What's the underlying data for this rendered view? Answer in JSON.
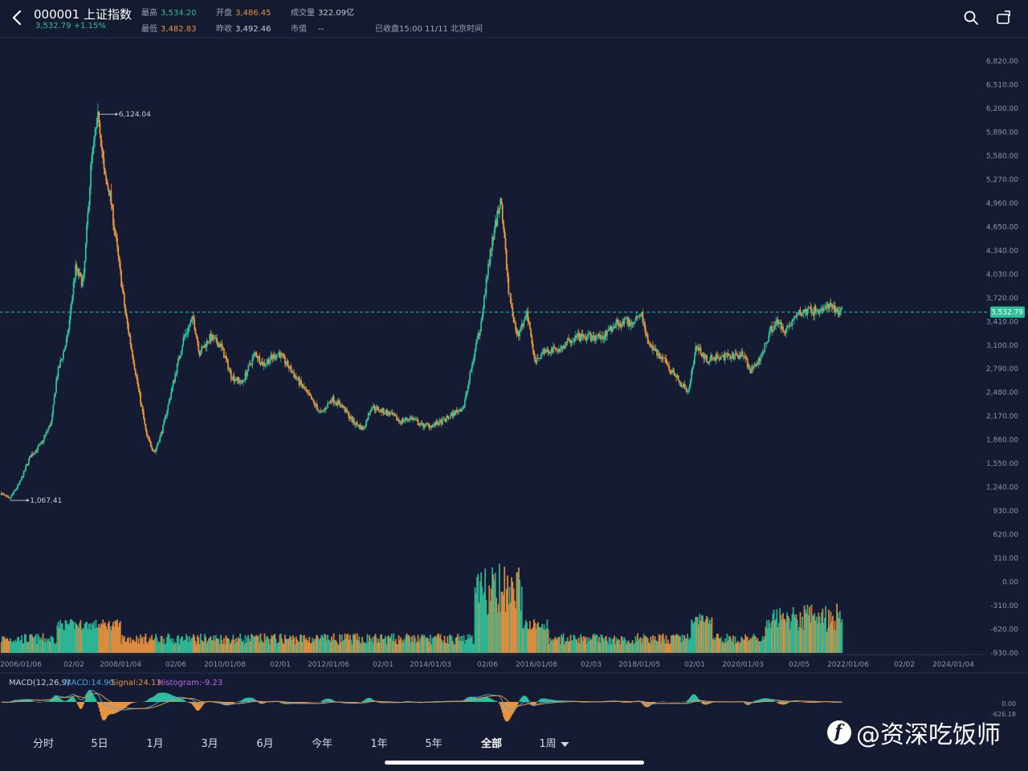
{
  "header": {
    "code_name": "000001 上证指数",
    "price_change": "3,532.79 +1.15%",
    "high_label": "最高",
    "high_value": "3,534.20",
    "low_label": "最低",
    "low_value": "3,482.83",
    "open_label": "开盘",
    "open_value": "3,486.45",
    "prev_close_label": "昨收",
    "prev_close_value": "3,492.46",
    "volume_label": "成交量",
    "volume_value": "322.09亿",
    "market_cap_label": "市值",
    "market_cap_value": "--",
    "status": "已收盘15:00 11/11 北京时间",
    "icons": [
      "back-chevron-icon",
      "search-icon",
      "landscape-rotate-icon"
    ]
  },
  "tabs": [
    {
      "label": "分时"
    },
    {
      "label": "5日"
    },
    {
      "label": "1月"
    },
    {
      "label": "3月"
    },
    {
      "label": "6月"
    },
    {
      "label": "今年"
    },
    {
      "label": "1年"
    },
    {
      "label": "5年"
    },
    {
      "label": "全部",
      "active": true
    },
    {
      "label": "1周",
      "dropdown": true
    }
  ],
  "macd": {
    "params": "MACD(12,26,9)",
    "macd": "MACD:14.90",
    "signal": "Signal:24.13",
    "histogram": "Histogram:-9.23",
    "axis": [
      "0.00",
      "-626.18"
    ]
  },
  "watermark": "@资深吃饭师",
  "colors": {
    "background": "#151b32",
    "up": "#2fbf9a",
    "down": "#e8943f",
    "price_line": "#2fbf9a",
    "macd_line": "#4aa3e8",
    "signal_line": "#e8943f",
    "histogram_label": "#b46ae6"
  },
  "chart_data": {
    "type": "candlestick",
    "price_axis": [
      "6,820.00",
      "6,510.00",
      "6,200.00",
      "5,890.00",
      "5,580.00",
      "5,270.00",
      "4,960.00",
      "4,650.00",
      "4,340.00",
      "4,030.00",
      "3,720.00",
      "3,410.00",
      "3,100.00",
      "2,790.00",
      "2,480.00",
      "2,170.00",
      "1,860.00",
      "1,550.00",
      "1,240.00",
      "930.00",
      "620.00",
      "310.00",
      "0.00",
      "-310.00",
      "-620.00",
      "-930.00"
    ],
    "ylim": [
      -930,
      6820
    ],
    "x_labels": [
      "2006/01/06",
      "02/02",
      "2008/01/04",
      "02/06",
      "2010/01/08",
      "02/01",
      "2012/01/06",
      "02/01",
      "2014/01/03",
      "02/06",
      "2016/01/08",
      "02/03",
      "2018/01/05",
      "02/01",
      "2020/01/03",
      "02/05",
      "2022/01/06",
      "02/02",
      "2024/01/04"
    ],
    "current_price_label": "3,532.79",
    "annotations": [
      {
        "text": "6,124.04",
        "date": 2007.79,
        "value": 6124.04
      },
      {
        "text": "1,067.41",
        "date": 2006.11,
        "value": 1067.41
      }
    ],
    "close_series": {
      "x": [
        2005.95,
        2006.1,
        2006.3,
        2006.5,
        2006.7,
        2006.9,
        2007.0,
        2007.2,
        2007.35,
        2007.5,
        2007.65,
        2007.79,
        2007.9,
        2008.0,
        2008.15,
        2008.3,
        2008.5,
        2008.7,
        2008.85,
        2009.0,
        2009.2,
        2009.4,
        2009.58,
        2009.7,
        2009.9,
        2010.1,
        2010.3,
        2010.5,
        2010.75,
        2010.9,
        2011.0,
        2011.2,
        2011.4,
        2011.6,
        2011.8,
        2012.0,
        2012.2,
        2012.4,
        2012.6,
        2012.8,
        2012.95,
        2013.1,
        2013.3,
        2013.5,
        2013.7,
        2013.9,
        2014.1,
        2014.3,
        2014.5,
        2014.7,
        2014.9,
        2015.0,
        2015.2,
        2015.4,
        2015.45,
        2015.55,
        2015.7,
        2015.9,
        2016.05,
        2016.2,
        2016.5,
        2016.8,
        2017.0,
        2017.3,
        2017.6,
        2017.9,
        2018.05,
        2018.2,
        2018.5,
        2018.8,
        2018.95,
        2019.1,
        2019.3,
        2019.5,
        2019.8,
        2020.0,
        2020.1,
        2020.3,
        2020.5,
        2020.6,
        2020.8,
        2021.0,
        2021.2,
        2021.4,
        2021.6,
        2021.85
      ],
      "y": [
        1160,
        1080,
        1300,
        1650,
        1800,
        2100,
        2700,
        3200,
        4100,
        3900,
        5500,
        6124,
        5300,
        5100,
        4300,
        3500,
        2700,
        1900,
        1700,
        2000,
        2600,
        3200,
        3450,
        3000,
        3200,
        3100,
        2700,
        2600,
        3000,
        2850,
        2900,
        3000,
        2800,
        2600,
        2400,
        2200,
        2400,
        2300,
        2100,
        2000,
        2300,
        2250,
        2200,
        2100,
        2150,
        2050,
        2050,
        2100,
        2200,
        2300,
        3000,
        3300,
        4300,
        5050,
        4600,
        3800,
        3200,
        3500,
        2900,
        3000,
        3050,
        3200,
        3200,
        3200,
        3400,
        3400,
        3550,
        3100,
        2900,
        2600,
        2500,
        3100,
        2900,
        2950,
        2950,
        3000,
        2750,
        2900,
        3300,
        3400,
        3300,
        3500,
        3550,
        3550,
        3600,
        3532.79
      ]
    },
    "volume_hint": "lower panel volume bars, higher around 2015 and 2019-2021",
    "macd_panel": {
      "series": [
        "MACD",
        "Signal",
        "Histogram"
      ]
    }
  }
}
